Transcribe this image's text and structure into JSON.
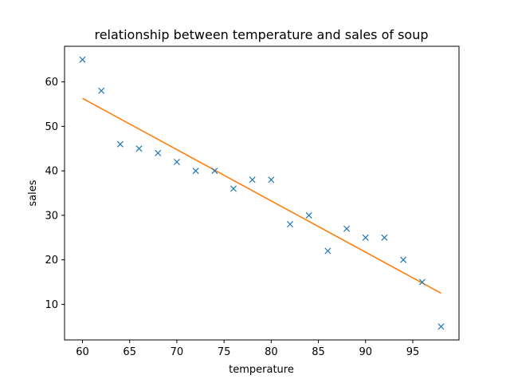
{
  "chart_data": {
    "type": "scatter",
    "title": "relationship between temperature and sales of soup",
    "xlabel": "temperature",
    "ylabel": "sales",
    "xlim": [
      58.1,
      99.9
    ],
    "ylim": [
      2,
      68
    ],
    "xticks": [
      60,
      65,
      70,
      75,
      80,
      85,
      90,
      95
    ],
    "yticks": [
      10,
      20,
      30,
      40,
      50,
      60
    ],
    "grid": false,
    "series": [
      {
        "kind": "scatter",
        "marker": "x",
        "color": "#1f77b4",
        "x": [
          60,
          62,
          64,
          66,
          68,
          70,
          72,
          74,
          76,
          78,
          80,
          82,
          84,
          86,
          88,
          90,
          92,
          94,
          96,
          98
        ],
        "y": [
          65,
          58,
          46,
          45,
          44,
          42,
          40,
          40,
          36,
          38,
          38,
          28,
          30,
          22,
          27,
          25,
          25,
          20,
          15,
          5
        ]
      },
      {
        "kind": "line",
        "color": "#ff7f0e",
        "x": [
          60,
          98
        ],
        "y": [
          56.3,
          12.5
        ]
      }
    ]
  }
}
